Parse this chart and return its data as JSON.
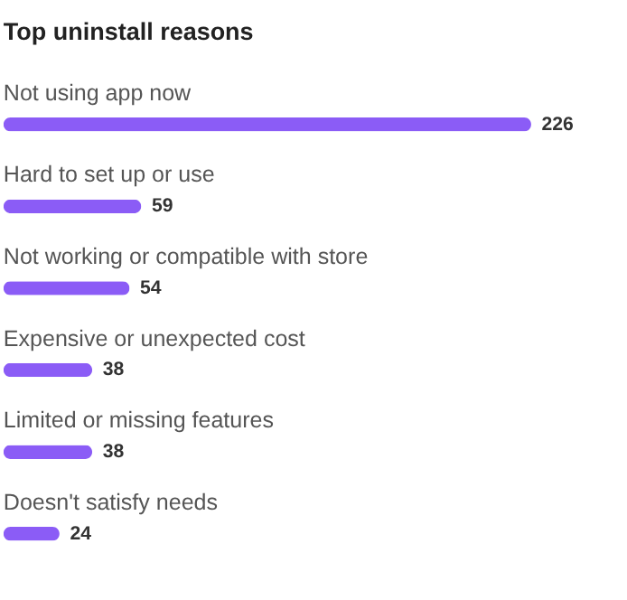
{
  "chart_data": {
    "type": "bar",
    "orientation": "horizontal",
    "title": "Top uninstall reasons",
    "categories": [
      "Not using app now",
      "Hard to set up or use",
      "Not working or compatible with store",
      "Expensive or unexpected cost",
      "Limited or missing features",
      "Doesn't satisfy needs"
    ],
    "values": [
      226,
      59,
      54,
      38,
      38,
      24
    ],
    "color": "#8b5cf6",
    "data_labels": true
  }
}
